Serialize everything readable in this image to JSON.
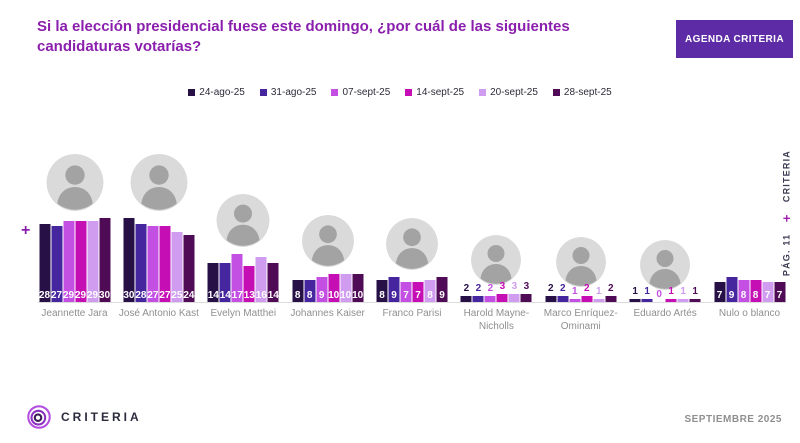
{
  "header": {
    "title": "Si la elección presidencial fuese este domingo, ¿por cuál de las siguientes candidaturas votarías?",
    "button_label": "AGENDA CRITERIA"
  },
  "chart_data": {
    "type": "bar",
    "title": "Si la elección presidencial fuese este domingo, ¿por cuál de las siguientes candidaturas votarías?",
    "legend_position": "top",
    "grid": false,
    "ylim": [
      0,
      30
    ],
    "unit": "%",
    "categories": [
      "Jeannette Jara",
      "José Antonio Kast",
      "Evelyn Matthei",
      "Johannes Kaiser",
      "Franco Parisi",
      "Harold Mayne-Nicholls",
      "Marco Enríquez-Ominami",
      "Eduardo Artés",
      "Nulo o blanco"
    ],
    "series": [
      {
        "name": "24-ago-25",
        "color": "#261046",
        "values": [
          28,
          30,
          14,
          8,
          8,
          2,
          2,
          1,
          7
        ]
      },
      {
        "name": "31-ago-25",
        "color": "#46269e",
        "values": [
          27,
          28,
          14,
          8,
          9,
          2,
          2,
          1,
          9
        ]
      },
      {
        "name": "07-sept-25",
        "color": "#c44fe3",
        "values": [
          29,
          27,
          17,
          9,
          7,
          2,
          1,
          0,
          8
        ]
      },
      {
        "name": "14-sept-25",
        "color": "#c50eb3",
        "values": [
          29,
          27,
          13,
          10,
          7,
          3,
          2,
          1,
          8
        ]
      },
      {
        "name": "20-sept-25",
        "color": "#cf9cf0",
        "values": [
          29,
          25,
          16,
          10,
          8,
          3,
          1,
          1,
          7
        ]
      },
      {
        "name": "28-sept-25",
        "color": "#4f0b55",
        "values": [
          30,
          24,
          14,
          10,
          9,
          3,
          2,
          1,
          7
        ]
      }
    ]
  },
  "candidates": [
    {
      "name_lines": [
        "Jeannette Jara"
      ],
      "photo": true
    },
    {
      "name_lines": [
        "José Antonio Kast"
      ],
      "photo": true
    },
    {
      "name_lines": [
        "Evelyn Matthei"
      ],
      "photo": true
    },
    {
      "name_lines": [
        "Johannes Kaiser"
      ],
      "photo": true
    },
    {
      "name_lines": [
        "Franco Parisi"
      ],
      "photo": true
    },
    {
      "name_lines": [
        "Harold Mayne-",
        "Nicholls"
      ],
      "photo": true
    },
    {
      "name_lines": [
        "Marco Enríquez-",
        "Ominami"
      ],
      "photo": true
    },
    {
      "name_lines": [
        "Eduardo Artés"
      ],
      "photo": true
    },
    {
      "name_lines": [
        "Nulo o blanco"
      ],
      "photo": false
    }
  ],
  "decor": {
    "left_plus": "+"
  },
  "side": {
    "page": "PÁG. 11",
    "plus": "+",
    "brand": "CRITERIA"
  },
  "footer": {
    "brand": "CRITERIA",
    "date": "SEPTIEMBRE 2025"
  },
  "colors": {
    "title": "#8b1fad",
    "button_bg": "#5e2ba6",
    "axis_line": "#dcdcdc",
    "category_label": "#8f8f8f"
  }
}
